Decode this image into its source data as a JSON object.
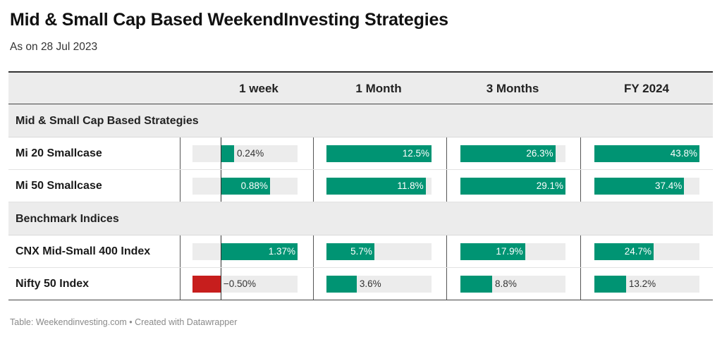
{
  "title": "Mid & Small Cap Based WeekendInvesting Strategies",
  "subtitle": "As on 28 Jul 2023",
  "footer": "Table: Weekendinvesting.com • Created with Datawrapper",
  "colors": {
    "positive": "#009473",
    "negative": "#c71e1d",
    "track": "#ececec",
    "header_bg": "#ececec"
  },
  "chart_data": {
    "type": "table",
    "columns": [
      "1 week",
      "1 Month",
      "3 Months",
      "FY 2024"
    ],
    "column_ranges": [
      [
        -0.5,
        1.37
      ],
      [
        0,
        12.5
      ],
      [
        0,
        29.1
      ],
      [
        0,
        43.8
      ]
    ],
    "groups": [
      {
        "label": "Mid & Small Cap Based Strategies",
        "rows": [
          {
            "name": "Mi 20 Smallcase",
            "values": [
              0.24,
              12.5,
              26.3,
              43.8
            ],
            "labels": [
              "0.24%",
              "12.5%",
              "26.3%",
              "43.8%"
            ]
          },
          {
            "name": "Mi 50 Smallcase",
            "values": [
              0.88,
              11.8,
              29.1,
              37.4
            ],
            "labels": [
              "0.88%",
              "11.8%",
              "29.1%",
              "37.4%"
            ]
          }
        ]
      },
      {
        "label": "Benchmark Indices",
        "rows": [
          {
            "name": "CNX Mid-Small 400 Index",
            "values": [
              1.37,
              5.7,
              17.9,
              24.7
            ],
            "labels": [
              "1.37%",
              "5.7%",
              "17.9%",
              "24.7%"
            ]
          },
          {
            "name": "Nifty 50 Index",
            "values": [
              -0.5,
              3.6,
              8.8,
              13.2
            ],
            "labels": [
              "−0.50%",
              "3.6%",
              "8.8%",
              "13.2%"
            ]
          }
        ]
      }
    ]
  }
}
